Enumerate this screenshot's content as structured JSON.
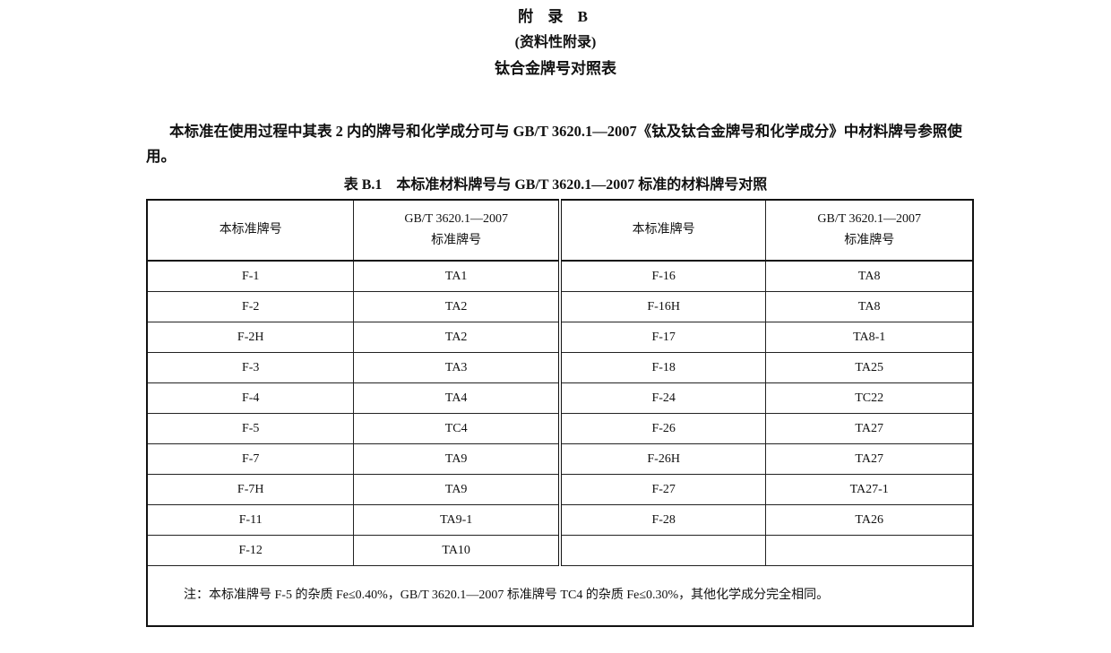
{
  "heading": {
    "appendix": "附 录 B",
    "type": "(资料性附录)",
    "title": "钛合金牌号对照表"
  },
  "paragraph": "本标准在使用过程中其表 2 内的牌号和化学成分可与 GB/T 3620.1—2007《钛及钛合金牌号和化学成分》中材料牌号参照使用。",
  "table": {
    "caption": "表 B.1　本标准材料牌号与 GB/T 3620.1—2007 标准的材料牌号对照",
    "headers": [
      "本标准牌号",
      "GB/T 3620.1—2007",
      "标准牌号"
    ],
    "rows": [
      [
        "F-1",
        "TA1",
        "F-16",
        "TA8"
      ],
      [
        "F-2",
        "TA2",
        "F-16H",
        "TA8"
      ],
      [
        "F-2H",
        "TA2",
        "F-17",
        "TA8-1"
      ],
      [
        "F-3",
        "TA3",
        "F-18",
        "TA25"
      ],
      [
        "F-4",
        "TA4",
        "F-24",
        "TC22"
      ],
      [
        "F-5",
        "TC4",
        "F-26",
        "TA27"
      ],
      [
        "F-7",
        "TA9",
        "F-26H",
        "TA27"
      ],
      [
        "F-7H",
        "TA9",
        "F-27",
        "TA27-1"
      ],
      [
        "F-11",
        "TA9-1",
        "F-28",
        "TA26"
      ],
      [
        "F-12",
        "TA10",
        "",
        ""
      ]
    ],
    "note": "注：本标准牌号 F-5 的杂质 Fe≤0.40%，GB/T 3620.1—2007 标准牌号 TC4 的杂质 Fe≤0.30%，其他化学成分完全相同。"
  }
}
